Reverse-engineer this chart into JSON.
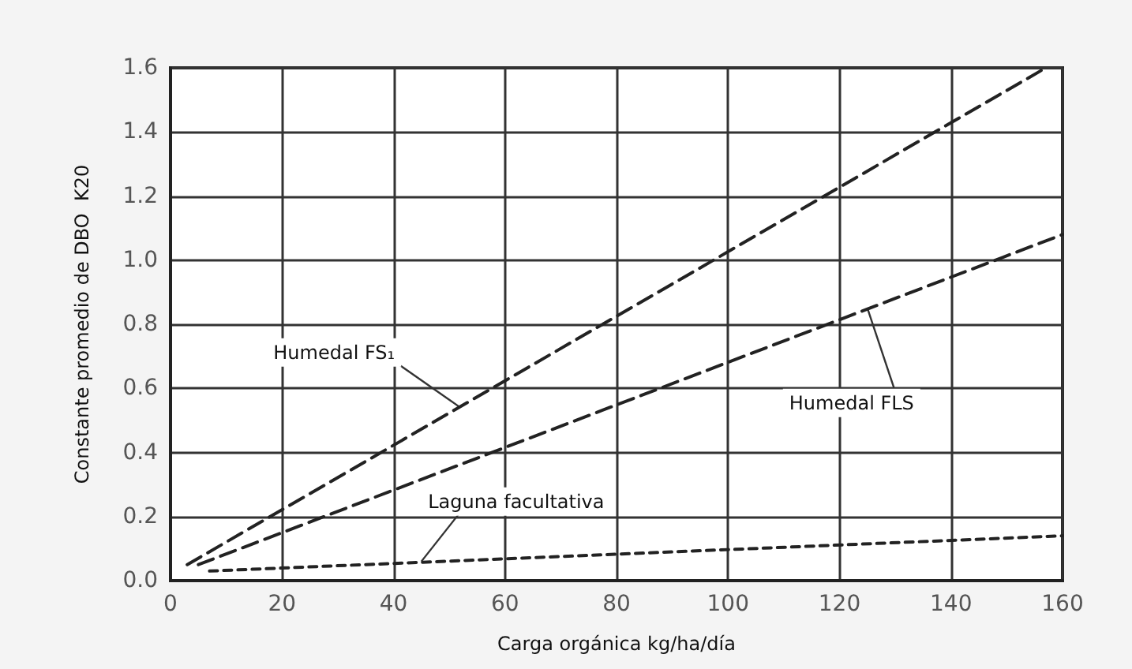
{
  "chart_data": {
    "type": "line",
    "xlabel": "Carga orgánica kg/ha/día",
    "ylabel": "Constante promedio de DBO  K20",
    "series": [
      {
        "color": "#222222",
        "line_style": "dashed",
        "x": [
          3,
          157
        ],
        "values": [
          0.05,
          1.6
        ]
      },
      {
        "color": "#222222",
        "line_style": "dashed",
        "x": [
          5,
          160
        ],
        "values": [
          0.05,
          1.08
        ]
      },
      {
        "color": "#222222",
        "line_style": "dotted",
        "x": [
          7,
          160
        ],
        "values": [
          0.03,
          0.14
        ]
      }
    ],
    "annotations": [
      {
        "text": "Humedal FS₁",
        "x": 52,
        "y": 0.54
      },
      {
        "text": "Humedal FLS",
        "x": 125,
        "y": 0.85
      },
      {
        "text": "Laguna facultativa",
        "x": 45,
        "y": 0.06
      }
    ],
    "xlim": [
      0,
      160
    ],
    "xticks": [
      0,
      20,
      40,
      60,
      80,
      100,
      120,
      140,
      160
    ],
    "ylim": [
      0,
      1.6
    ],
    "yticks": [
      {
        "value": 0,
        "label": "0.0"
      },
      0.2,
      0.4,
      0.6,
      0.8,
      {
        "value": 1,
        "label": "1.0"
      },
      1.2,
      1.4,
      1.6
    ],
    "grid": true,
    "marker": "none"
  }
}
